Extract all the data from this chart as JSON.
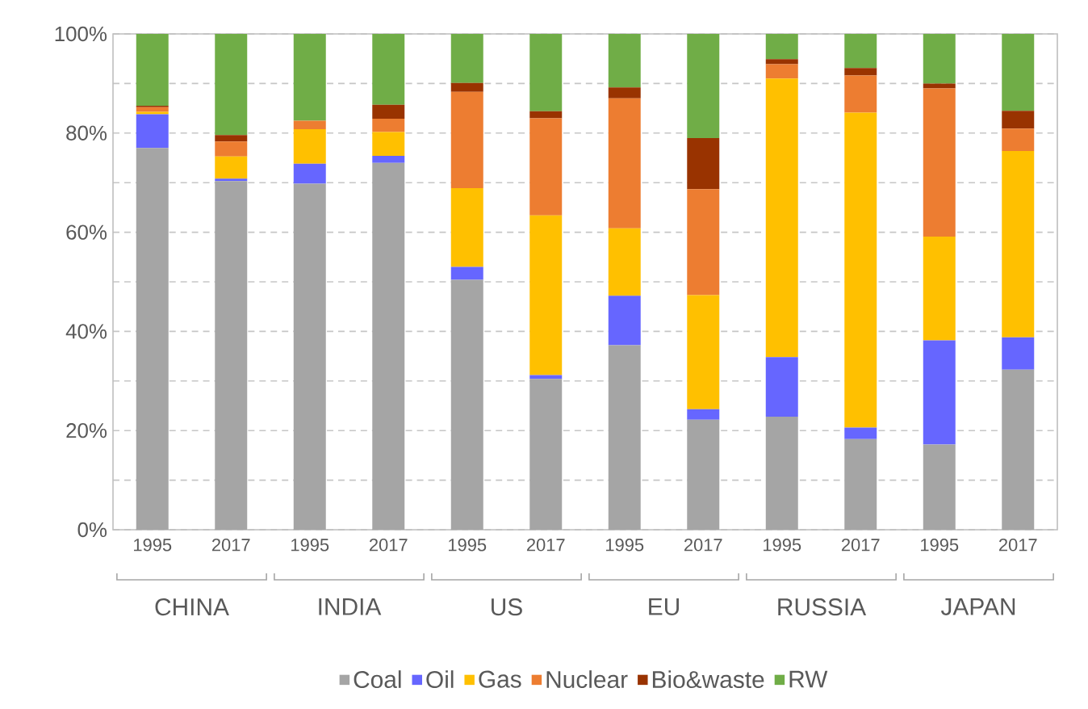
{
  "chart_data": {
    "type": "bar",
    "stacked": true,
    "categories": [
      "1995",
      "2017",
      "1995",
      "2017",
      "1995",
      "2017",
      "1995",
      "2017",
      "1995",
      "2017",
      "1995",
      "2017"
    ],
    "annotations": [
      "CHINA",
      "INDIA",
      "US",
      "EU",
      "RUSSIA",
      "JAPAN"
    ],
    "series": [
      {
        "name": "Coal",
        "color": "#a5a5a5",
        "values": [
          77.0,
          70.3,
          69.8,
          74.0,
          50.4,
          30.4,
          37.2,
          22.2,
          22.8,
          18.3,
          17.2,
          32.3
        ]
      },
      {
        "name": "Oil",
        "color": "#6666ff",
        "values": [
          6.8,
          0.5,
          4.0,
          1.4,
          2.6,
          0.8,
          10.0,
          2.1,
          12.0,
          2.3,
          21.0,
          6.5
        ]
      },
      {
        "name": "Gas",
        "color": "#ffc000",
        "values": [
          0.5,
          4.5,
          7.0,
          4.8,
          15.9,
          32.2,
          13.6,
          23.0,
          56.2,
          63.5,
          20.9,
          37.6
        ]
      },
      {
        "name": "Nuclear",
        "color": "#ed7d31",
        "values": [
          0.9,
          3.0,
          1.7,
          2.7,
          19.4,
          19.6,
          26.2,
          21.4,
          2.9,
          7.5,
          29.9,
          4.5
        ]
      },
      {
        "name": "Bio&waste",
        "color": "#993300",
        "values": [
          0.3,
          1.3,
          0.0,
          2.8,
          1.8,
          1.4,
          2.2,
          10.3,
          1.0,
          1.5,
          1.0,
          3.6
        ]
      },
      {
        "name": "RW",
        "color": "#70ad47",
        "values": [
          14.5,
          20.4,
          17.5,
          14.3,
          9.9,
          15.6,
          10.8,
          21.0,
          5.1,
          6.9,
          10.0,
          15.5
        ]
      }
    ],
    "ylim": [
      0,
      100
    ],
    "yticks": [
      {
        "value": 0,
        "label": "0%"
      },
      {
        "value": 10,
        "label": null
      },
      {
        "value": 20,
        "label": "20%"
      },
      {
        "value": 30,
        "label": null
      },
      {
        "value": 40,
        "label": "40%"
      },
      {
        "value": 50,
        "label": null
      },
      {
        "value": 60,
        "label": "60%"
      },
      {
        "value": 70,
        "label": null
      },
      {
        "value": 80,
        "label": "80%"
      },
      {
        "value": 90,
        "label": null
      },
      {
        "value": 100,
        "label": "100%"
      }
    ],
    "grid": "y",
    "legend": "bottom"
  }
}
